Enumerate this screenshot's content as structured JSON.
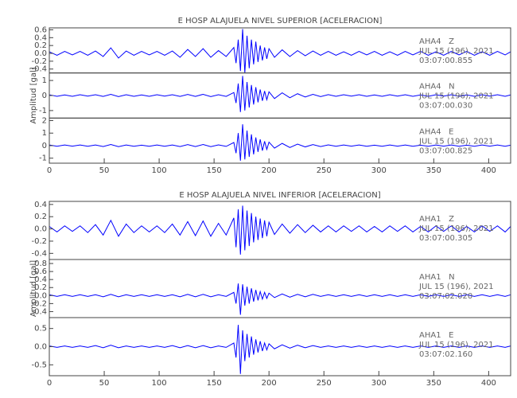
{
  "chart_data": [
    {
      "type": "line",
      "title": "E HOSP ALAJUELA NIVEL SUPERIOR [ACELERACION]",
      "y_label": "Amplitud [gal]",
      "xlim": [
        0,
        420
      ],
      "xticks": [
        0,
        50,
        100,
        150,
        200,
        250,
        300,
        350,
        400
      ],
      "x": [
        0,
        7,
        14,
        21,
        28,
        35,
        42,
        49,
        56,
        63,
        70,
        77,
        84,
        91,
        98,
        105,
        112,
        119,
        126,
        133,
        140,
        147,
        154,
        161,
        168,
        170,
        172,
        174,
        176,
        178,
        180,
        182,
        184,
        186,
        188,
        190,
        192,
        194,
        196,
        198,
        200,
        205,
        212,
        219,
        226,
        233,
        240,
        247,
        254,
        261,
        268,
        275,
        282,
        289,
        296,
        303,
        310,
        317,
        324,
        331,
        338,
        345,
        352,
        359,
        366,
        373,
        380,
        387,
        394,
        401,
        408,
        415,
        420
      ],
      "series": [
        {
          "name": "AHA4   Z",
          "date": "JUL 15 (196), 2021",
          "time": "03:07:00.855",
          "color": "#0000ff",
          "ylim": [
            -0.5,
            0.65
          ],
          "yticks": [
            0.6,
            0.4,
            0.2,
            {
              "value": 0,
              "label": "0.0"
            },
            -0.2,
            -0.4
          ],
          "values": [
            0.04,
            -0.05,
            0.05,
            -0.04,
            0.05,
            -0.05,
            0.06,
            -0.08,
            0.14,
            -0.12,
            0.06,
            -0.05,
            0.05,
            -0.04,
            0.05,
            -0.05,
            0.06,
            -0.1,
            0.1,
            -0.08,
            0.12,
            -0.1,
            0.07,
            -0.08,
            0.15,
            -0.25,
            0.35,
            -0.45,
            0.62,
            -0.5,
            0.45,
            -0.38,
            0.35,
            -0.28,
            0.3,
            -0.22,
            0.2,
            -0.18,
            0.15,
            -0.14,
            0.12,
            -0.1,
            0.09,
            -0.08,
            0.07,
            -0.06,
            0.06,
            -0.05,
            0.05,
            -0.05,
            0.04,
            -0.05,
            0.05,
            -0.04,
            0.05,
            -0.05,
            0.04,
            -0.05,
            0.05,
            -0.04,
            0.05,
            -0.05,
            0.04,
            -0.05,
            0.05,
            -0.04,
            0.05,
            -0.05,
            0.04,
            -0.05,
            0.05,
            -0.04,
            0.04
          ]
        },
        {
          "name": "AHA4   N",
          "date": "JUL 15 (196), 2021",
          "time": "03:07:00.030",
          "color": "#0000ff",
          "ylim": [
            -1.5,
            1.5
          ],
          "yticks": [
            1,
            0,
            -1
          ],
          "values": [
            0.05,
            -0.05,
            0.04,
            -0.05,
            0.05,
            -0.04,
            0.05,
            -0.06,
            0.08,
            -0.07,
            0.05,
            -0.05,
            0.04,
            -0.05,
            0.05,
            -0.04,
            0.05,
            -0.06,
            0.07,
            -0.06,
            0.08,
            -0.07,
            0.05,
            -0.06,
            0.2,
            -0.5,
            0.8,
            -1.1,
            1.3,
            -1.0,
            0.9,
            -0.8,
            0.7,
            -0.6,
            0.55,
            -0.45,
            0.4,
            -0.35,
            0.3,
            -0.28,
            0.25,
            -0.2,
            0.18,
            -0.15,
            0.12,
            -0.1,
            0.08,
            -0.07,
            0.06,
            -0.05,
            0.05,
            -0.04,
            0.05,
            -0.05,
            0.04,
            -0.05,
            0.05,
            -0.04,
            0.05,
            -0.05,
            0.04,
            -0.05,
            0.05,
            -0.04,
            0.05,
            -0.05,
            0.04,
            -0.05,
            0.05,
            -0.04,
            0.05,
            -0.05,
            0.04
          ]
        },
        {
          "name": "AHA4   E",
          "date": "JUL 15 (196), 2021",
          "time": "03:07:00.825",
          "color": "#0000ff",
          "ylim": [
            -1.4,
            2.2
          ],
          "yticks": [
            2,
            1,
            0,
            -1
          ],
          "values": [
            0.05,
            -0.05,
            0.05,
            -0.04,
            0.05,
            -0.05,
            0.05,
            -0.07,
            0.09,
            -0.08,
            0.05,
            -0.05,
            0.04,
            -0.05,
            0.05,
            -0.05,
            0.05,
            -0.07,
            0.08,
            -0.07,
            0.09,
            -0.08,
            0.06,
            -0.06,
            0.25,
            -0.6,
            1.0,
            -1.2,
            1.7,
            -1.1,
            1.2,
            -0.9,
            0.9,
            -0.7,
            0.65,
            -0.5,
            0.5,
            -0.4,
            0.35,
            -0.3,
            0.28,
            -0.2,
            0.18,
            -0.15,
            0.12,
            -0.1,
            0.08,
            -0.07,
            0.06,
            -0.05,
            0.05,
            -0.04,
            0.05,
            -0.05,
            0.04,
            -0.05,
            0.05,
            -0.04,
            0.05,
            -0.05,
            0.04,
            -0.05,
            0.05,
            -0.04,
            0.05,
            -0.05,
            0.04,
            -0.05,
            0.05,
            -0.04,
            0.05,
            -0.05,
            0.04
          ]
        }
      ]
    },
    {
      "type": "line",
      "title": "E HOSP ALAJUELA NIVEL INFERIOR [ACELERACION]",
      "y_label": "Amplitud [gal]",
      "xlim": [
        0,
        420
      ],
      "xticks": [
        0,
        50,
        100,
        150,
        200,
        250,
        300,
        350,
        400
      ],
      "x": [
        0,
        7,
        14,
        21,
        28,
        35,
        42,
        49,
        56,
        63,
        70,
        77,
        84,
        91,
        98,
        105,
        112,
        119,
        126,
        133,
        140,
        147,
        154,
        161,
        168,
        170,
        172,
        174,
        176,
        178,
        180,
        182,
        184,
        186,
        188,
        190,
        192,
        194,
        196,
        198,
        200,
        205,
        212,
        219,
        226,
        233,
        240,
        247,
        254,
        261,
        268,
        275,
        282,
        289,
        296,
        303,
        310,
        317,
        324,
        331,
        338,
        345,
        352,
        359,
        366,
        373,
        380,
        387,
        394,
        401,
        408,
        415,
        420
      ],
      "series": [
        {
          "name": "AHA1   Z",
          "date": "JUL 15 (196), 2021",
          "time": "03:07:00.305",
          "color": "#0000ff",
          "ylim": [
            -0.5,
            0.45
          ],
          "yticks": [
            0.4,
            0.2,
            {
              "value": 0,
              "label": "0.0"
            },
            -0.2,
            -0.4
          ],
          "values": [
            0.04,
            -0.05,
            0.05,
            -0.04,
            0.05,
            -0.06,
            0.07,
            -0.1,
            0.14,
            -0.12,
            0.08,
            -0.06,
            0.05,
            -0.05,
            0.05,
            -0.06,
            0.08,
            -0.1,
            0.12,
            -0.11,
            0.13,
            -0.12,
            0.09,
            -0.1,
            0.18,
            -0.3,
            0.32,
            -0.42,
            0.38,
            -0.35,
            0.3,
            -0.28,
            0.26,
            -0.22,
            0.2,
            -0.18,
            0.17,
            -0.15,
            0.14,
            -0.12,
            0.11,
            -0.09,
            0.08,
            -0.07,
            0.07,
            -0.06,
            0.06,
            -0.05,
            0.05,
            -0.05,
            0.05,
            -0.04,
            0.05,
            -0.05,
            0.04,
            -0.05,
            0.05,
            -0.04,
            0.05,
            -0.05,
            0.04,
            -0.05,
            0.05,
            -0.04,
            0.05,
            -0.05,
            0.04,
            -0.05,
            0.05,
            -0.04,
            0.05,
            -0.05,
            0.04
          ]
        },
        {
          "name": "AHA1   N",
          "date": "JUL 15 (196), 2021",
          "time": "03:07:02.020",
          "color": "#0000ff",
          "ylim": [
            -0.55,
            0.9
          ],
          "yticks": [
            0.8,
            0.6,
            0.4,
            0.2,
            {
              "value": 0,
              "label": "0.0"
            },
            -0.2,
            -0.4
          ],
          "values": [
            0.02,
            -0.02,
            0.02,
            -0.02,
            0.02,
            -0.02,
            0.02,
            -0.03,
            0.03,
            -0.03,
            0.02,
            -0.02,
            0.02,
            -0.02,
            0.02,
            -0.02,
            0.02,
            -0.03,
            0.03,
            -0.03,
            0.03,
            -0.03,
            0.02,
            -0.02,
            0.08,
            -0.2,
            0.3,
            -0.48,
            0.28,
            -0.25,
            0.22,
            -0.2,
            0.18,
            -0.15,
            0.14,
            -0.12,
            0.1,
            -0.09,
            0.08,
            -0.07,
            0.06,
            -0.05,
            0.04,
            -0.04,
            0.03,
            -0.03,
            0.03,
            -0.02,
            0.02,
            -0.02,
            0.02,
            -0.02,
            0.02,
            -0.02,
            0.02,
            -0.02,
            0.02,
            -0.02,
            0.02,
            -0.02,
            0.02,
            -0.02,
            0.02,
            -0.02,
            0.02,
            -0.02,
            0.02,
            -0.02,
            0.02,
            -0.02,
            0.02,
            -0.02,
            0.02
          ]
        },
        {
          "name": "AHA1   E",
          "date": "JUL 15 (196), 2021",
          "time": "03:07:02.160",
          "color": "#0000ff",
          "ylim": [
            -0.8,
            0.8
          ],
          "yticks": [
            0.5,
            {
              "value": 0,
              "label": "0.0"
            },
            -0.5
          ],
          "values": [
            0.02,
            -0.02,
            0.02,
            -0.02,
            0.02,
            -0.02,
            0.03,
            -0.03,
            0.04,
            -0.03,
            0.02,
            -0.02,
            0.02,
            -0.02,
            0.02,
            -0.02,
            0.03,
            -0.03,
            0.03,
            -0.03,
            0.03,
            -0.03,
            0.02,
            -0.02,
            0.1,
            -0.3,
            0.6,
            -0.75,
            0.45,
            -0.4,
            0.35,
            -0.3,
            0.28,
            -0.22,
            0.2,
            -0.16,
            0.15,
            -0.12,
            0.1,
            -0.09,
            0.08,
            -0.06,
            0.05,
            -0.04,
            0.04,
            -0.03,
            0.03,
            -0.02,
            0.02,
            -0.02,
            0.02,
            -0.02,
            0.02,
            -0.02,
            0.02,
            -0.02,
            0.02,
            -0.02,
            0.02,
            -0.02,
            0.02,
            -0.02,
            0.02,
            -0.02,
            0.02,
            -0.02,
            0.02,
            -0.02,
            0.02,
            -0.02,
            0.02,
            -0.02,
            0.02
          ]
        }
      ]
    }
  ]
}
